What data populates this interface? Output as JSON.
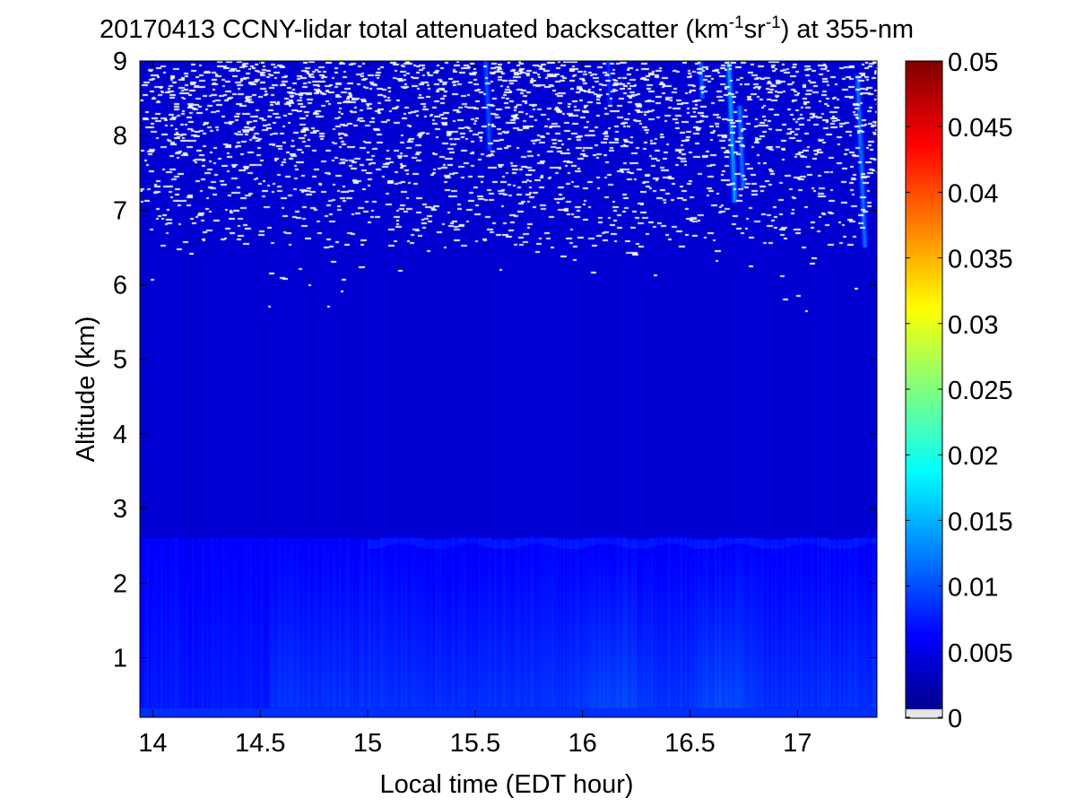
{
  "chart_data": {
    "type": "heatmap",
    "title": {
      "pre": "20170413 CCNY-lidar total attenuated backscatter (km",
      "sup1": "-1",
      "mid": "sr",
      "sup2": "-1",
      "post": ") at 355-nm"
    },
    "xlabel": "Local time (EDT hour)",
    "ylabel": "Altitude (km)",
    "xlim": [
      13.94,
      17.37
    ],
    "ylim": [
      0.2,
      9
    ],
    "x_ticks": [
      14,
      14.5,
      15,
      15.5,
      16,
      16.5,
      17
    ],
    "x_tick_labels": [
      "14",
      "14.5",
      "15",
      "15.5",
      "16",
      "16.5",
      "17"
    ],
    "y_ticks": [
      1,
      2,
      3,
      4,
      5,
      6,
      7,
      8,
      9
    ],
    "y_tick_labels": [
      "1",
      "2",
      "3",
      "4",
      "5",
      "6",
      "7",
      "8",
      "9"
    ],
    "colorbar": {
      "colormap": "jet",
      "range": [
        0,
        0.05
      ],
      "ticks": [
        0,
        0.005,
        0.01,
        0.015,
        0.02,
        0.025,
        0.03,
        0.035,
        0.04,
        0.045,
        0.05
      ],
      "tick_labels": [
        "0",
        "0.005",
        "0.01",
        "0.015",
        "0.02",
        "0.025",
        "0.03",
        "0.035",
        "0.04",
        "0.045",
        "0.05"
      ]
    },
    "field_description": {
      "background_level": 0.004,
      "boundary_layer": {
        "top_km": 2.6,
        "level_min": 0.006,
        "level_max": 0.009,
        "enhanced_after_hour": 14.55
      },
      "noise_region": {
        "from_km": 5.3,
        "to_km": 9,
        "densest_above_km": 6.5
      },
      "cirrus_streaks": [
        {
          "hour": 15.55,
          "top_km": 9,
          "bottom_km": 7.8,
          "level": 0.011
        },
        {
          "hour": 16.12,
          "top_km": 9,
          "bottom_km": 8.4,
          "level": 0.009
        },
        {
          "hour": 16.55,
          "top_km": 9,
          "bottom_km": 8.5,
          "level": 0.012
        },
        {
          "hour": 16.68,
          "top_km": 9,
          "bottom_km": 7.1,
          "level": 0.015
        },
        {
          "hour": 16.73,
          "top_km": 8.4,
          "bottom_km": 7.3,
          "level": 0.013
        },
        {
          "hour": 17.28,
          "top_km": 8.8,
          "bottom_km": 6.5,
          "level": 0.013
        }
      ]
    }
  }
}
